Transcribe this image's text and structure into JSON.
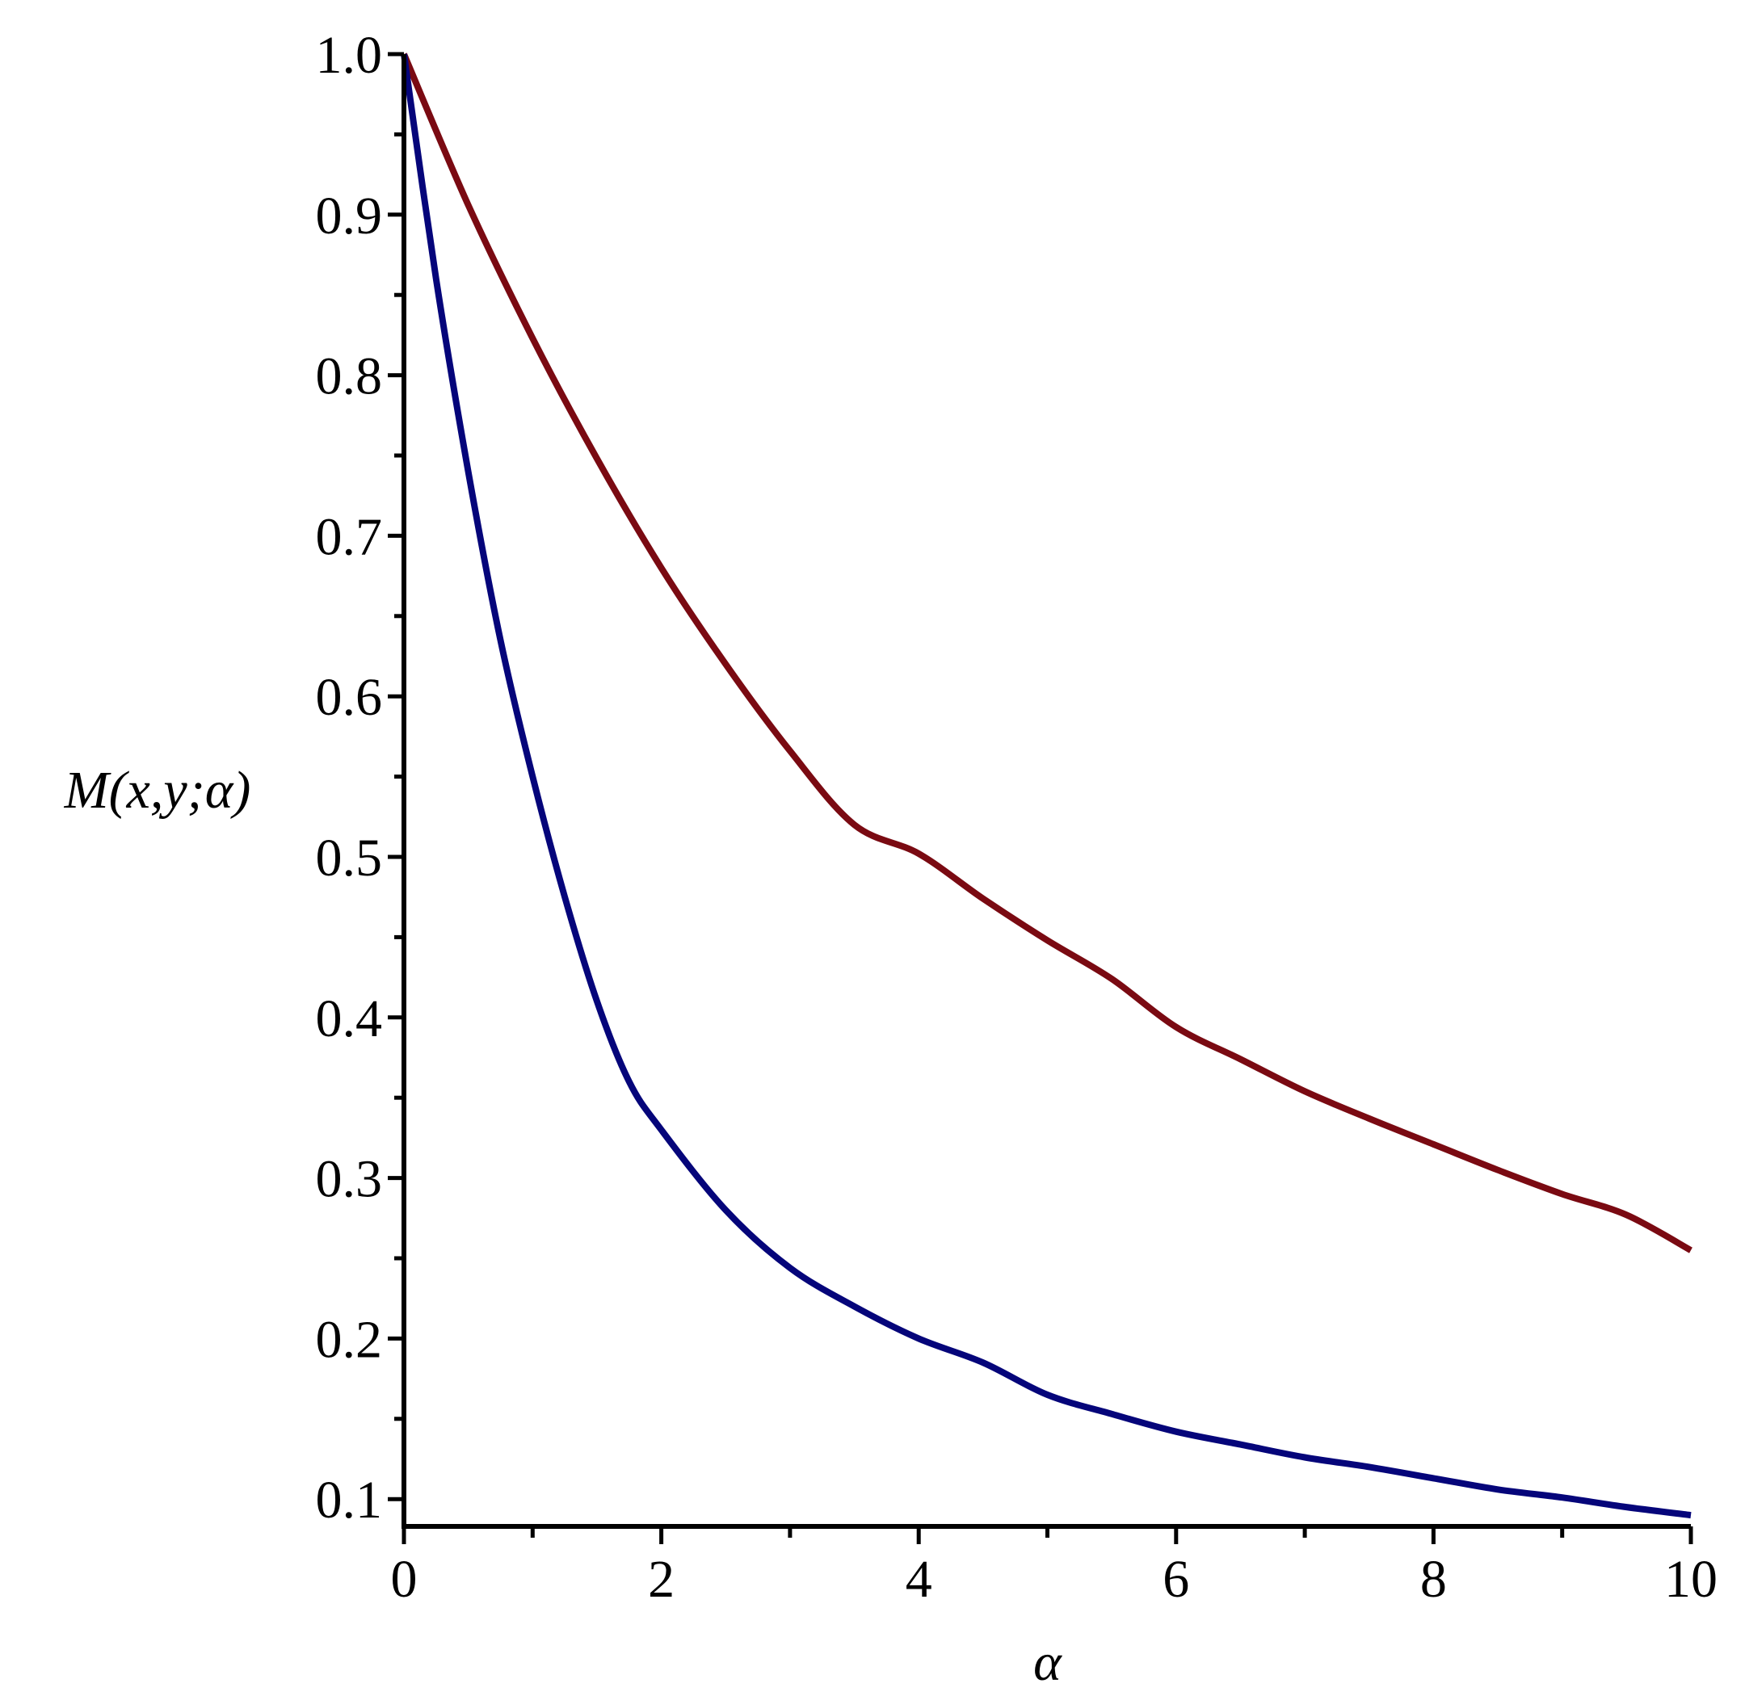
{
  "chart_data": {
    "type": "line",
    "title": "",
    "xlabel": "α",
    "ylabel": "M(x,y;α)",
    "xlim": [
      0,
      10
    ],
    "ylim": [
      0.083,
      1.0
    ],
    "xticks": [
      0,
      2,
      4,
      6,
      8,
      10
    ],
    "xtick_labels": [
      "0",
      "2",
      "4",
      "6",
      "8",
      "10"
    ],
    "xminor_ticks": [
      1,
      3,
      5,
      7,
      9
    ],
    "yticks": [
      0.1,
      0.2,
      0.3,
      0.4,
      0.5,
      0.6,
      0.7,
      0.8,
      0.9,
      1.0
    ],
    "ytick_labels": [
      "0.1",
      "0.2",
      "0.3",
      "0.4",
      "0.5",
      "0.6",
      "0.7",
      "0.8",
      "0.9",
      "1.0"
    ],
    "yminor_ticks": [
      0.15,
      0.25,
      0.35,
      0.45,
      0.55,
      0.65,
      0.75,
      0.85,
      0.95
    ],
    "grid": false,
    "legend": "none",
    "series": [
      {
        "color": "#7a0a12",
        "x": [
          0,
          0.5,
          1,
          1.5,
          2,
          2.5,
          3,
          3.5,
          4,
          4.5,
          5,
          5.5,
          6,
          6.5,
          7,
          7.5,
          8,
          8.5,
          9,
          9.5,
          10
        ],
        "y": [
          1.0,
          0.906,
          0.823,
          0.748,
          0.68,
          0.62,
          0.566,
          0.52,
          0.502,
          0.474,
          0.448,
          0.424,
          0.394,
          0.374,
          0.354,
          0.337,
          0.321,
          0.305,
          0.29,
          0.277,
          0.255
        ]
      },
      {
        "color": "#05057a",
        "x": [
          0,
          0.25,
          0.5,
          0.75,
          1,
          1.25,
          1.5,
          1.75,
          2,
          2.5,
          3,
          3.5,
          4,
          4.5,
          5,
          5.5,
          6,
          6.5,
          7,
          7.5,
          8,
          8.5,
          9,
          9.5,
          10
        ],
        "y": [
          1.0,
          0.86,
          0.74,
          0.635,
          0.55,
          0.475,
          0.41,
          0.36,
          0.33,
          0.28,
          0.244,
          0.22,
          0.2,
          0.185,
          0.165,
          0.153,
          0.142,
          0.134,
          0.126,
          0.12,
          0.113,
          0.106,
          0.101,
          0.095,
          0.09
        ]
      }
    ]
  }
}
